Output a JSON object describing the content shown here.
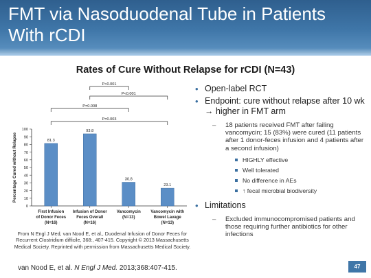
{
  "slide": {
    "title": "FMT via Nasoduodenal Tube in Patients With rCDI",
    "page_number": "47"
  },
  "chart_data": {
    "type": "bar",
    "title": "Rates of Cure Without Relapse for rCDI (N=43)",
    "ylabel": "Percentage Cured without Relapse",
    "ylim": [
      0,
      100
    ],
    "yticks": [
      0,
      10,
      20,
      30,
      40,
      50,
      60,
      70,
      80,
      90,
      100
    ],
    "categories": [
      [
        "First Infusion",
        "of Donor Feces",
        "(N=16)"
      ],
      [
        "Infusion of Donor",
        "Feces Overall",
        "(N=16)"
      ],
      [
        "Vancomycin",
        "(N=13)"
      ],
      [
        "Vancomycin with",
        "Bowel Lavage",
        "(N=13)"
      ]
    ],
    "values": [
      81.3,
      93.8,
      30.8,
      23.1
    ],
    "value_labels": [
      "81.3",
      "93.8",
      "30.8",
      "23.1"
    ],
    "bar_color": "#5b8ec6",
    "comparisons": [
      {
        "label": "P<0.001",
        "from": 1,
        "to": 2
      },
      {
        "label": "P<0.001",
        "from": 1,
        "to": 3
      },
      {
        "label": "P=0.008",
        "from": 0,
        "to": 2
      },
      {
        "label": "P=0.003",
        "from": 0,
        "to": 3
      }
    ]
  },
  "caption": "From N Engl J Med, van Nood E, et al., Duodenal Infusion of Donor Feces for Recurrent Clostridium difficile, 368:, 407-415. Copyright © 2013 Massachusetts Medical Society. Reprinted with permission from Massachusetts Medical Society.",
  "citation": {
    "authors": "van Nood E, et al.",
    "journal": "N Engl J Med.",
    "details": "2013;368:407-415."
  },
  "bullets": {
    "b1": "Open-label RCT",
    "b2": "Endpoint: cure without relapse after 10 wk → higher in FMT arm",
    "b2_sub": "18 patients received FMT after failing vancomycin; 15 (83%) were cured (11 patients after 1 donor-feces infusion and 4 patients after a second infusion)",
    "b2_points": [
      "HIGHLY effective",
      "Well tolerated",
      "No difference in AEs",
      "↑ fecal microbial biodiversity"
    ],
    "b3": "Limitations",
    "b3_sub": "Excluded immunocompromised patients and those requiring further antibiotics for other infections"
  }
}
